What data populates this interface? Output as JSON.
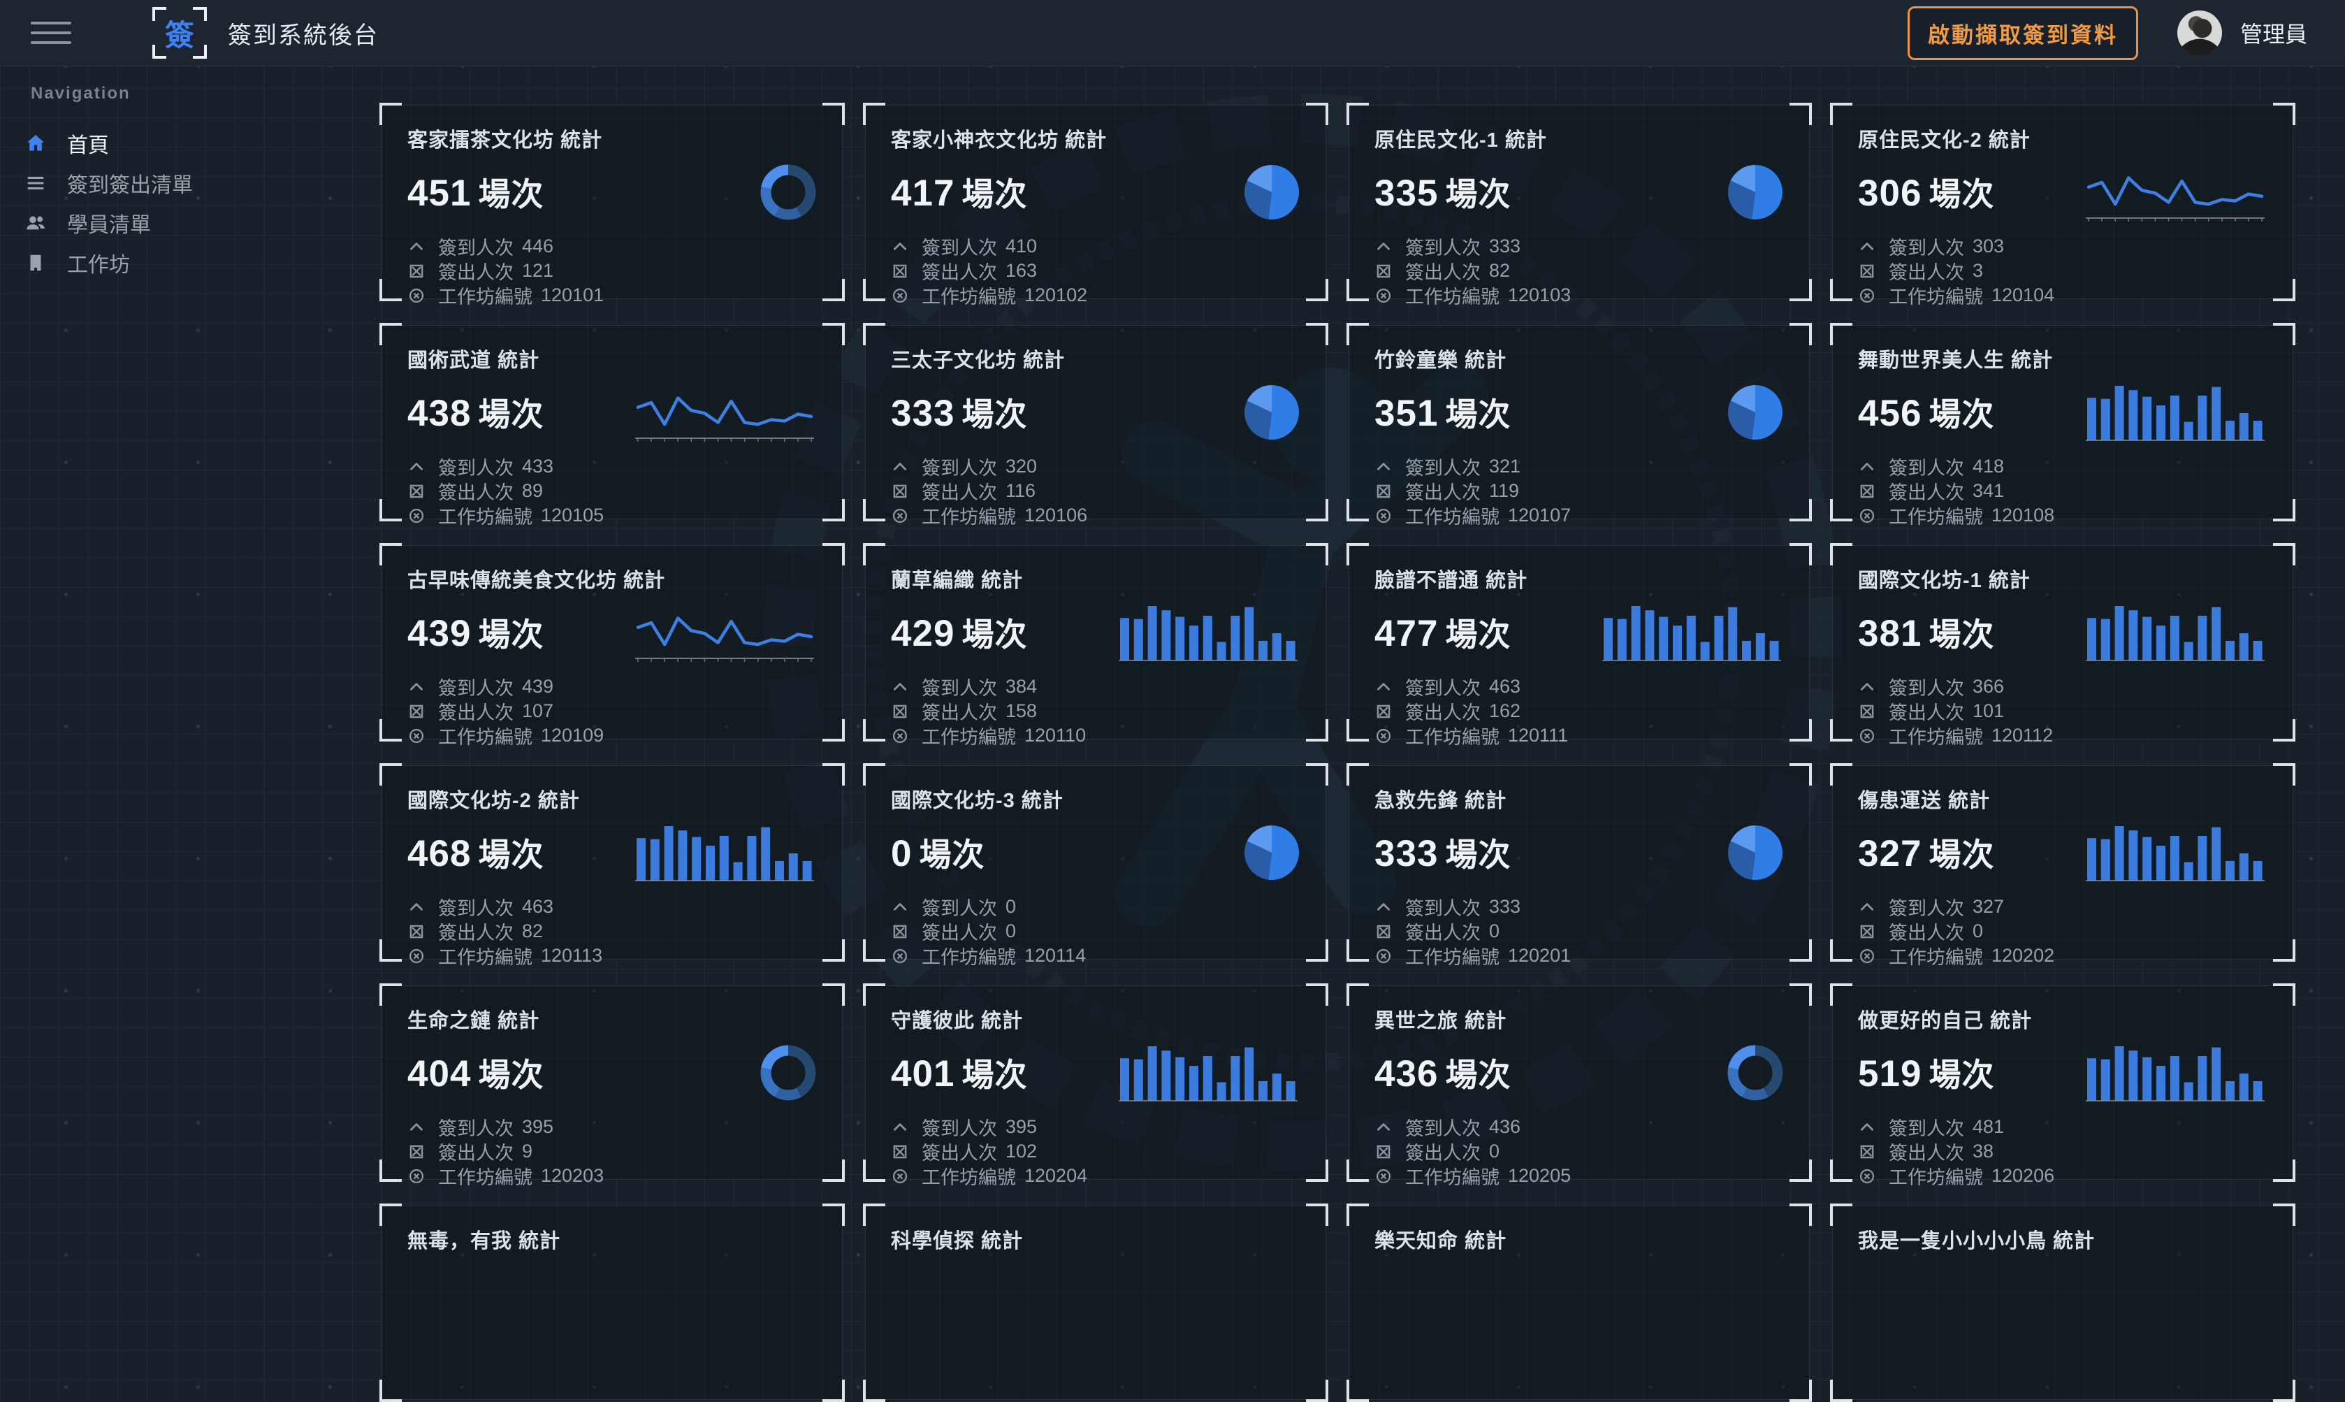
{
  "navbar": {
    "logo_char": "簽",
    "title": "簽到系統後台",
    "action_button": "啟動擷取簽到資料",
    "user_name": "管理員"
  },
  "sidebar": {
    "section_label": "Navigation",
    "items": [
      {
        "label": "首頁",
        "icon": "home-icon",
        "active": true
      },
      {
        "label": "簽到簽出清單",
        "icon": "list-icon",
        "active": false
      },
      {
        "label": "學員清單",
        "icon": "people-icon",
        "active": false
      },
      {
        "label": "工作坊",
        "icon": "building-icon",
        "active": false
      }
    ]
  },
  "labels": {
    "stats_suffix": "統計",
    "sessions_suffix": "場次",
    "checkin": "簽到人次",
    "checkout": "簽出人次",
    "workshop_id": "工作坊編號"
  },
  "cards": [
    {
      "title": "客家擂茶文化坊",
      "chart": "donut",
      "sessions": "451",
      "checkin": "446",
      "checkout": "121",
      "workshop_id": "120101"
    },
    {
      "title": "客家小神衣文化坊",
      "chart": "pie",
      "sessions": "417",
      "checkin": "410",
      "checkout": "163",
      "workshop_id": "120102"
    },
    {
      "title": "原住民文化-1",
      "chart": "pie",
      "sessions": "335",
      "checkin": "333",
      "checkout": "82",
      "workshop_id": "120103"
    },
    {
      "title": "原住民文化-2",
      "chart": "line",
      "sessions": "306",
      "checkin": "303",
      "checkout": "3",
      "workshop_id": "120104"
    },
    {
      "title": "國術武道",
      "chart": "line",
      "sessions": "438",
      "checkin": "433",
      "checkout": "89",
      "workshop_id": "120105"
    },
    {
      "title": "三太子文化坊",
      "chart": "pie",
      "sessions": "333",
      "checkin": "320",
      "checkout": "116",
      "workshop_id": "120106"
    },
    {
      "title": "竹鈴童樂",
      "chart": "pie",
      "sessions": "351",
      "checkin": "321",
      "checkout": "119",
      "workshop_id": "120107"
    },
    {
      "title": "舞動世界美人生",
      "chart": "bar",
      "sessions": "456",
      "checkin": "418",
      "checkout": "341",
      "workshop_id": "120108"
    },
    {
      "title": "古早味傳統美食文化坊",
      "chart": "line",
      "sessions": "439",
      "checkin": "439",
      "checkout": "107",
      "workshop_id": "120109"
    },
    {
      "title": "蘭草編織",
      "chart": "bar",
      "sessions": "429",
      "checkin": "384",
      "checkout": "158",
      "workshop_id": "120110"
    },
    {
      "title": "臉譜不譜通",
      "chart": "bar",
      "sessions": "477",
      "checkin": "463",
      "checkout": "162",
      "workshop_id": "120111"
    },
    {
      "title": "國際文化坊-1",
      "chart": "bar",
      "sessions": "381",
      "checkin": "366",
      "checkout": "101",
      "workshop_id": "120112"
    },
    {
      "title": "國際文化坊-2",
      "chart": "bar",
      "sessions": "468",
      "checkin": "463",
      "checkout": "82",
      "workshop_id": "120113"
    },
    {
      "title": "國際文化坊-3",
      "chart": "pie",
      "sessions": "0",
      "checkin": "0",
      "checkout": "0",
      "workshop_id": "120114"
    },
    {
      "title": "急救先鋒",
      "chart": "pie",
      "sessions": "333",
      "checkin": "333",
      "checkout": "0",
      "workshop_id": "120201"
    },
    {
      "title": "傷患運送",
      "chart": "bar",
      "sessions": "327",
      "checkin": "327",
      "checkout": "0",
      "workshop_id": "120202"
    },
    {
      "title": "生命之鏈",
      "chart": "donut",
      "sessions": "404",
      "checkin": "395",
      "checkout": "9",
      "workshop_id": "120203"
    },
    {
      "title": "守護彼此",
      "chart": "bar",
      "sessions": "401",
      "checkin": "395",
      "checkout": "102",
      "workshop_id": "120204"
    },
    {
      "title": "異世之旅",
      "chart": "donut",
      "sessions": "436",
      "checkin": "436",
      "checkout": "0",
      "workshop_id": "120205"
    },
    {
      "title": "做更好的自己",
      "chart": "bar",
      "sessions": "519",
      "checkin": "481",
      "checkout": "38",
      "workshop_id": "120206"
    }
  ],
  "partial_cards": [
    {
      "title": "無毒，有我"
    },
    {
      "title": "科學偵探"
    },
    {
      "title": "樂天知命"
    },
    {
      "title": "我是一隻小小小小鳥"
    }
  ],
  "chart_data": {
    "bar": {
      "type": "bar",
      "values": [
        78,
        76,
        100,
        92,
        80,
        64,
        82,
        34,
        82,
        98,
        36,
        50,
        36
      ],
      "ylim": [
        0,
        100
      ]
    },
    "line": {
      "type": "line",
      "values": [
        55,
        65,
        18,
        75,
        48,
        42,
        22,
        68,
        22,
        18,
        28,
        25,
        40,
        35
      ],
      "ylim": [
        0,
        100
      ]
    },
    "pie": {
      "type": "pie",
      "segments": [
        {
          "value": 52,
          "color": "#2f7de6"
        },
        {
          "value": 30,
          "color": "#2a5da8"
        },
        {
          "value": 18,
          "color": "#5b9af0"
        }
      ]
    },
    "donut": {
      "type": "donut",
      "segments": [
        {
          "value": 42,
          "color": "#26496f"
        },
        {
          "value": 16,
          "color": "#30609f"
        },
        {
          "value": 20,
          "color": "#3a72c2"
        },
        {
          "value": 22,
          "color": "#4f90ef"
        }
      ]
    }
  },
  "colors": {
    "accent_blue": "#3a7bdd",
    "accent_orange": "#ef9440",
    "background": "#18212a",
    "card_bracket": "#dfe3e7",
    "text_primary": "#edf0f3",
    "text_muted": "#97a0a8"
  }
}
